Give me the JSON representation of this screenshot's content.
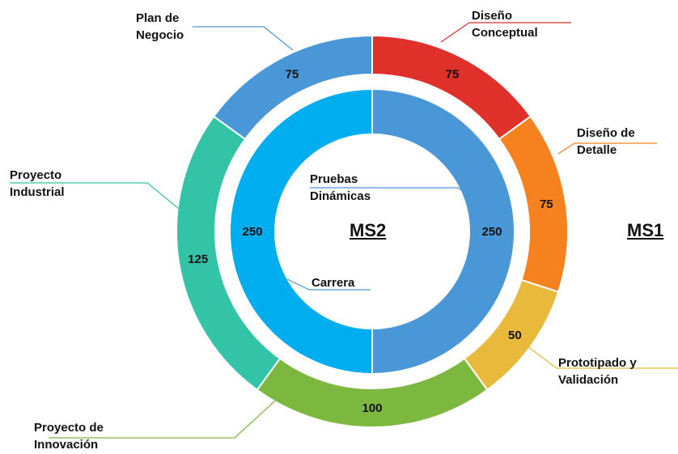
{
  "chart_data": {
    "type": "donut",
    "series": [
      {
        "name": "MS1",
        "categories": [
          "Diseño Conceptual",
          "Diseño de Detalle",
          "Prototipado y Validación",
          "Proyecto de Innovación",
          "Proyecto Industrial",
          "Plan de Negocio"
        ],
        "values": [
          75,
          75,
          50,
          100,
          125,
          75
        ],
        "colors": [
          "#e0302a",
          "#f5821f",
          "#e8b93a",
          "#7cb83f",
          "#33c4a8",
          "#4a97d8"
        ]
      },
      {
        "name": "MS2",
        "categories": [
          "Pruebas Dinámicas",
          "Carrera"
        ],
        "values": [
          250,
          250
        ],
        "colors": [
          "#4a97d8",
          "#00adef"
        ]
      }
    ]
  }
}
